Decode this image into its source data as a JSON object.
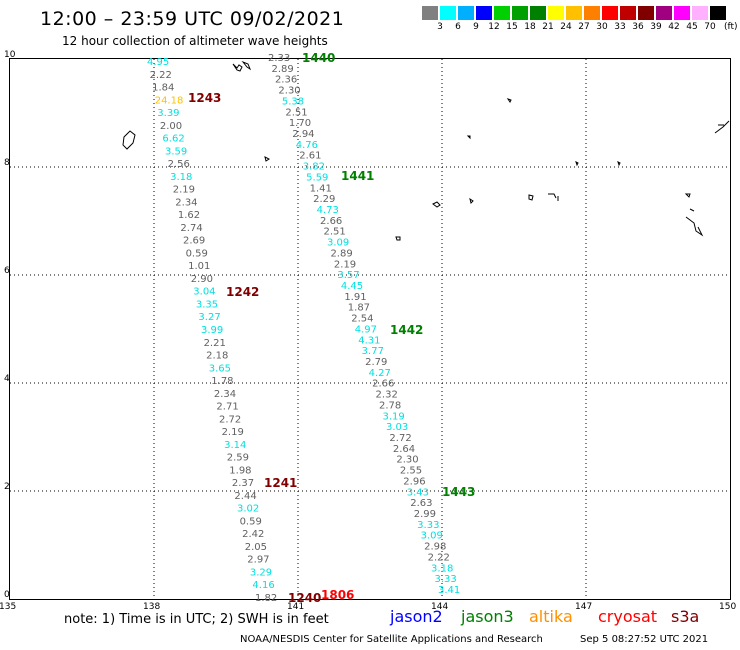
{
  "header": {
    "title": "12:00 – 23:59 UTC 09/02/2021",
    "subtitle": "12 hour collection of altimeter wave heights"
  },
  "colorbar": {
    "unit": "(ft)",
    "swatches": [
      "#808080",
      "#00ffff",
      "#00b0ff",
      "#0000ff",
      "#00d000",
      "#00a000",
      "#008000",
      "#ffff00",
      "#ffc000",
      "#ff8000",
      "#ff0000",
      "#c00000",
      "#800000",
      "#a00080",
      "#ff00ff",
      "#ffb0ff",
      "#000000"
    ],
    "labels": [
      "3",
      "6",
      "9",
      "12",
      "15",
      "18",
      "21",
      "24",
      "27",
      "30",
      "33",
      "36",
      "39",
      "42",
      "45",
      "70"
    ]
  },
  "axes": {
    "x_ticks": [
      "135",
      "138",
      "141",
      "144",
      "147",
      "150"
    ],
    "y_ticks": [
      "0",
      "2",
      "4",
      "6",
      "8",
      "10"
    ]
  },
  "passes": [
    {
      "label": "1440",
      "color": "#008000"
    },
    {
      "label": "1441",
      "color": "#008000"
    },
    {
      "label": "1442",
      "color": "#008000"
    },
    {
      "label": "1443",
      "color": "#008000"
    },
    {
      "label": "1243",
      "color": "#800000"
    },
    {
      "label": "1242",
      "color": "#800000"
    },
    {
      "label": "1241",
      "color": "#800000"
    },
    {
      "label": "1240",
      "color": "#800000"
    },
    {
      "label": "1806",
      "color": "#ff0000"
    }
  ],
  "track_a": {
    "values": [
      "4.95",
      "2.22",
      "1.84",
      "24.18",
      "3.39",
      "2.00",
      "6.62",
      "3.59",
      "2.56",
      "3.18",
      "2.19",
      "2.34",
      "1.62",
      "2.74",
      "2.69",
      "0.59",
      "1.01",
      "2.90",
      "3.04",
      "3.35",
      "3.27",
      "3.99",
      "2.21",
      "2.18",
      "3.65",
      "1.78",
      "2.34",
      "2.71",
      "2.72",
      "2.19",
      "3.14",
      "2.59",
      "1.98",
      "2.37",
      "2.44",
      "3.02",
      "0.59",
      "2.42",
      "2.05",
      "2.97",
      "3.29",
      "4.16",
      "1.82"
    ],
    "colors": [
      "#00e0e0",
      "#606060",
      "#606060",
      "#ffc000",
      "#00e0e0",
      "#606060",
      "#00e0e0",
      "#00e0e0",
      "#606060",
      "#00e0e0",
      "#606060",
      "#606060",
      "#606060",
      "#606060",
      "#606060",
      "#606060",
      "#606060",
      "#606060",
      "#00e0e0",
      "#00e0e0",
      "#00e0e0",
      "#00e0e0",
      "#606060",
      "#606060",
      "#00e0e0",
      "#606060",
      "#606060",
      "#606060",
      "#606060",
      "#606060",
      "#00e0e0",
      "#606060",
      "#606060",
      "#606060",
      "#606060",
      "#00e0e0",
      "#606060",
      "#606060",
      "#606060",
      "#606060",
      "#00e0e0",
      "#00e0e0",
      "#606060"
    ]
  },
  "track_b": {
    "values": [
      "2.33",
      "2.89",
      "2.36",
      "2.30",
      "5.38",
      "2.51",
      "1.70",
      "2.94",
      "4.76",
      "2.61",
      "3.82",
      "5.59",
      "1.41",
      "2.29",
      "4.73",
      "2.66",
      "2.51",
      "3.09",
      "2.89",
      "2.19",
      "3.57",
      "4.45",
      "1.91",
      "1.87",
      "2.54",
      "4.97",
      "4.31",
      "3.77",
      "2.79",
      "4.27",
      "2.66",
      "2.32",
      "2.78",
      "3.19",
      "3.03",
      "2.72",
      "2.64",
      "2.30",
      "2.55",
      "2.96",
      "3.43",
      "2.63",
      "2.99",
      "3.33",
      "3.09",
      "2.98",
      "2.22",
      "3.18",
      "3.33",
      "3.41"
    ],
    "colors": [
      "#606060",
      "#606060",
      "#606060",
      "#606060",
      "#00e0e0",
      "#606060",
      "#606060",
      "#606060",
      "#00e0e0",
      "#606060",
      "#00e0e0",
      "#00e0e0",
      "#606060",
      "#606060",
      "#00e0e0",
      "#606060",
      "#606060",
      "#00e0e0",
      "#606060",
      "#606060",
      "#00e0e0",
      "#00e0e0",
      "#606060",
      "#606060",
      "#606060",
      "#00e0e0",
      "#00e0e0",
      "#00e0e0",
      "#606060",
      "#00e0e0",
      "#606060",
      "#606060",
      "#606060",
      "#00e0e0",
      "#00e0e0",
      "#606060",
      "#606060",
      "#606060",
      "#606060",
      "#606060",
      "#00e0e0",
      "#606060",
      "#606060",
      "#00e0e0",
      "#00e0e0",
      "#606060",
      "#606060",
      "#00e0e0",
      "#00e0e0",
      "#00e0e0"
    ]
  },
  "footer": {
    "note": "note:  1) Time is in UTC;  2) SWH is in feet",
    "satellites": [
      {
        "name": "jason2",
        "color": "#0000ff"
      },
      {
        "name": "jason3",
        "color": "#008000"
      },
      {
        "name": "altika",
        "color": "#ff9000"
      },
      {
        "name": "cryosat",
        "color": "#ff0000"
      },
      {
        "name": "s3a",
        "color": "#800000"
      }
    ],
    "credit": "NOAA/NESDIS Center for Satellite Applications and Research",
    "generated": "Sep  5 08:27:52 UTC 2021"
  }
}
